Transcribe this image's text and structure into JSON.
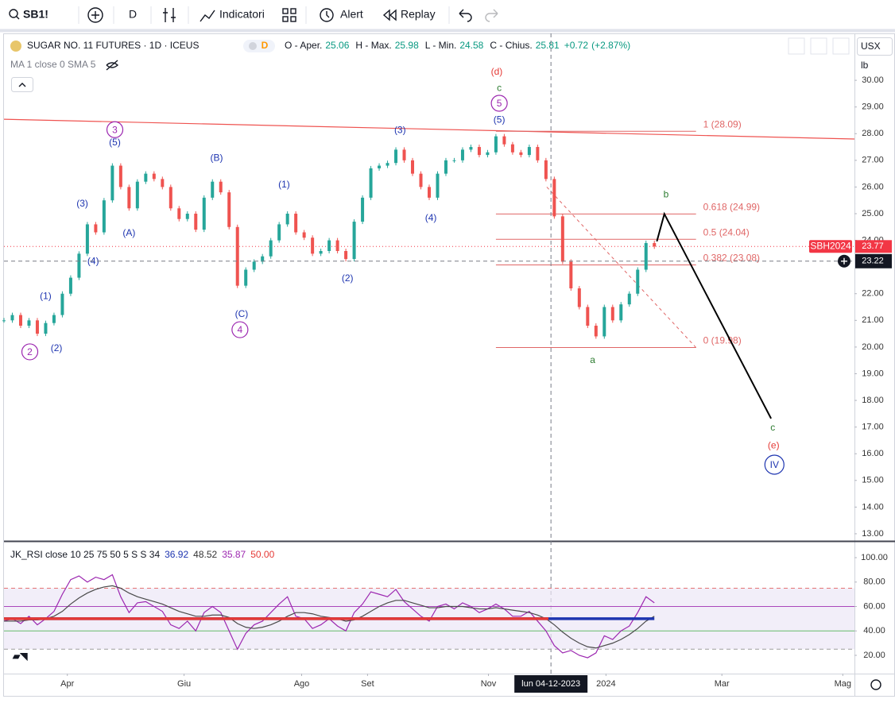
{
  "toolbar": {
    "symbol": "SB1!",
    "interval": "D",
    "indicators": "Indicatori",
    "alert": "Alert",
    "replay": "Replay"
  },
  "chart_data": [
    {
      "type": "candlestick",
      "title": "SUGAR NO. 11 FUTURES · 1D · ICEUS",
      "badge": "D",
      "ohlc": [
        {
          "label": "O - Aper.",
          "value": 25.06
        },
        {
          "label": "H - Max.",
          "value": 25.98
        },
        {
          "label": "L - Min.",
          "value": 24.58
        },
        {
          "label": "C - Chius.",
          "value": 25.81
        }
      ],
      "change": "+0.72",
      "change_pct": "(+2.87%)",
      "indicator_legend": "MA 1 close 0 SMA 5",
      "currency": "USX",
      "unit": "lb",
      "xlim": [
        0,
        102
      ],
      "ylim": [
        12.76,
        31.76
      ],
      "yticks": [
        {
          "value": 13,
          "label": "13.00"
        },
        {
          "value": 14,
          "label": "14.00"
        },
        {
          "value": 15,
          "label": "15.00"
        },
        {
          "value": 16,
          "label": "16.00"
        },
        {
          "value": 17,
          "label": "17.00"
        },
        {
          "value": 18,
          "label": "18.00"
        },
        {
          "value": 19,
          "label": "19.00"
        },
        {
          "value": 20,
          "label": "20.00"
        },
        {
          "value": 21,
          "label": "21.00"
        },
        {
          "value": 22,
          "label": "22.00"
        },
        {
          "value": 24,
          "label": "24.00"
        },
        {
          "value": 25,
          "label": "25.00"
        },
        {
          "value": 26,
          "label": "26.00"
        },
        {
          "value": 27,
          "label": "27.00"
        },
        {
          "value": 28,
          "label": "28.00"
        },
        {
          "value": 29,
          "label": "29.00"
        },
        {
          "value": 30,
          "label": "30.00"
        }
      ],
      "grid": false,
      "series": [
        {
          "name": "SBH2024",
          "color_up": "#26a69a",
          "color_down": "#ef5350",
          "tag_color": "#f23645",
          "values": [
            21.0,
            21.2,
            20.8,
            21.0,
            20.5,
            20.9,
            21.2,
            22.0,
            22.6,
            23.5,
            24.6,
            24.3,
            25.5,
            26.8,
            26.0,
            25.2,
            26.2,
            26.5,
            26.3,
            26.0,
            25.2,
            24.8,
            25.0,
            24.4,
            25.6,
            26.2,
            25.8,
            24.5,
            22.3,
            22.9,
            23.2,
            23.4,
            24.0,
            24.6,
            25.0,
            24.3,
            24.1,
            23.5,
            23.6,
            24.0,
            23.6,
            23.3,
            24.7,
            25.6,
            26.7,
            26.8,
            26.9,
            27.4,
            27.0,
            26.5,
            26.0,
            25.6,
            26.5,
            27.0,
            27.0,
            27.4,
            27.5,
            27.2,
            27.3,
            27.9,
            27.6,
            27.3,
            27.2,
            27.5,
            27.0,
            26.3,
            24.9,
            23.2,
            22.2,
            21.5,
            20.8,
            20.4,
            21.5,
            21.0,
            21.6,
            22.0,
            22.9,
            23.9,
            23.77
          ]
        }
      ],
      "crosshair": {
        "x": 65.6,
        "x_label": "lun 04-12-2023",
        "y": 23.22
      },
      "trendline": {
        "x": [
          0,
          102
        ],
        "y": [
          28.54,
          27.8
        ],
        "color": "#ef5350"
      },
      "fib": {
        "x": [
          59,
          83
        ],
        "color": "#e06666",
        "levels": [
          {
            "label": "1 (28.09)",
            "value": 28.09
          },
          {
            "label": "0.618 (24.99)",
            "value": 24.99
          },
          {
            "label": "0.5 (24.04)",
            "value": 24.04
          },
          {
            "label": "0.382 (23.08)",
            "value": 23.08
          },
          {
            "label": "0 (19.98)",
            "value": 19.98
          }
        ]
      },
      "fib_trend": {
        "x": [
          65.1,
          83
        ],
        "y": [
          26.0,
          19.98
        ]
      },
      "projection": {
        "x": [
          78.3,
          79.2,
          92.0
        ],
        "y": [
          23.96,
          24.99,
          17.32
        ],
        "color": "#000000"
      },
      "annotations": [
        {
          "text": "(d)",
          "x": 59.1,
          "y": 30.33,
          "color": "#e53935"
        },
        {
          "text": "c",
          "x": 59.4,
          "y": 29.73,
          "color": "#2e7d32"
        },
        {
          "text": "5",
          "x": 59.4,
          "y": 29.14,
          "color": "#9c27b0",
          "circle": true
        },
        {
          "text": "(5)",
          "x": 59.4,
          "y": 28.54,
          "color": "#1e35b0"
        },
        {
          "text": "3",
          "x": 13.3,
          "y": 28.15,
          "color": "#9c27b0",
          "circle": true
        },
        {
          "text": "(5)",
          "x": 13.3,
          "y": 27.68,
          "color": "#1e35b0"
        },
        {
          "text": "(3)",
          "x": 47.5,
          "y": 28.15,
          "color": "#1e35b0"
        },
        {
          "text": "(B)",
          "x": 25.5,
          "y": 27.11,
          "color": "#1e35b0"
        },
        {
          "text": "(1)",
          "x": 33.6,
          "y": 26.1,
          "color": "#1e35b0"
        },
        {
          "text": "(3)",
          "x": 9.4,
          "y": 25.39,
          "color": "#1e35b0"
        },
        {
          "text": "(4)",
          "x": 51.2,
          "y": 24.85,
          "color": "#1e35b0"
        },
        {
          "text": "(A)",
          "x": 15.0,
          "y": 24.29,
          "color": "#1e35b0"
        },
        {
          "text": "(4)",
          "x": 10.7,
          "y": 23.24,
          "color": "#1e35b0"
        },
        {
          "text": "(2)",
          "x": 41.2,
          "y": 22.59,
          "color": "#1e35b0"
        },
        {
          "text": "(1)",
          "x": 5.0,
          "y": 21.93,
          "color": "#1e35b0"
        },
        {
          "text": "(C)",
          "x": 28.5,
          "y": 21.25,
          "color": "#1e35b0"
        },
        {
          "text": "4",
          "x": 28.3,
          "y": 20.65,
          "color": "#9c27b0",
          "circle": true
        },
        {
          "text": "2",
          "x": 3.1,
          "y": 19.82,
          "color": "#9c27b0",
          "circle": true
        },
        {
          "text": "(2)",
          "x": 6.3,
          "y": 19.97,
          "color": "#1e35b0"
        },
        {
          "text": "b",
          "x": 79.4,
          "y": 25.74,
          "color": "#2e7d32"
        },
        {
          "text": "a",
          "x": 70.6,
          "y": 19.52,
          "color": "#2e7d32"
        },
        {
          "text": "c",
          "x": 92.2,
          "y": 16.99,
          "color": "#2e7d32"
        },
        {
          "text": "(e)",
          "x": 92.3,
          "y": 16.33,
          "color": "#e53935"
        },
        {
          "text": "IV",
          "x": 92.4,
          "y": 15.59,
          "color": "#1e35b0",
          "circle": true
        }
      ]
    },
    {
      "type": "line",
      "title": "JK_RSI close 10 25 75 50 5 S S 34",
      "legend_values": [
        {
          "value": 36.92,
          "color": "#1e35b0"
        },
        {
          "value": 48.52,
          "color": "#333333"
        },
        {
          "value": 35.87,
          "color": "#9c27b0"
        },
        {
          "value": {
            "value": 50,
            "label": "50.00"
          },
          "color": "#e53935"
        }
      ],
      "xlim": [
        0,
        102
      ],
      "ylim": [
        5.04,
        112.36
      ],
      "yticks": [
        {
          "value": 20,
          "label": "20.00"
        },
        {
          "value": 40,
          "label": "40.00"
        },
        {
          "value": 60,
          "label": "60.00"
        },
        {
          "value": 80,
          "label": "80.00"
        },
        {
          "value": 100,
          "label": "100.00"
        }
      ],
      "xticks": [
        {
          "value": 7.6,
          "label": "Apr"
        },
        {
          "value": 21.6,
          "label": "Giu"
        },
        {
          "value": 35.7,
          "label": "Ago"
        },
        {
          "value": 43.6,
          "label": "Set"
        },
        {
          "value": 58.1,
          "label": "Nov"
        },
        {
          "value": 72.2,
          "label": "2024"
        },
        {
          "value": 86.1,
          "label": "Mar"
        },
        {
          "value": 100.6,
          "label": "Mag"
        }
      ],
      "band": {
        "from": 25,
        "to": 75,
        "color": "#ede7f6"
      },
      "levels": [
        {
          "value": 75,
          "color": "#e57373",
          "dashed": true
        },
        {
          "value": 60,
          "color": "#ab47bc",
          "dashed": false
        },
        {
          "value": 40,
          "color": "#66bb6a",
          "dashed": false
        },
        {
          "value": 25,
          "color": "#9e9e9e",
          "dashed": true
        }
      ],
      "baselines": [
        {
          "value": 50,
          "x": [
            0,
            78
          ],
          "color": "#1e35b0"
        },
        {
          "value": 50,
          "x": [
            0,
            65.3
          ],
          "color": "#e53935"
        }
      ],
      "series": [
        {
          "color": "#9c27b0",
          "values": [
            48,
            50,
            46,
            52,
            45,
            50,
            56,
            70,
            82,
            85,
            80,
            84,
            82,
            86,
            68,
            55,
            63,
            64,
            60,
            56,
            45,
            42,
            48,
            40,
            55,
            60,
            55,
            40,
            25,
            38,
            45,
            48,
            55,
            62,
            68,
            52,
            50,
            42,
            45,
            50,
            44,
            40,
            55,
            62,
            72,
            70,
            68,
            74,
            64,
            58,
            52,
            48,
            60,
            62,
            58,
            63,
            60,
            55,
            58,
            62,
            58,
            52,
            52,
            56,
            48,
            40,
            28,
            22,
            24,
            20,
            18,
            22,
            36,
            33,
            40,
            44,
            55,
            68,
            63
          ]
        },
        {
          "color": "#4a4a4a",
          "values": [
            48,
            48,
            48,
            49,
            49,
            50,
            52,
            56,
            62,
            67,
            71,
            74,
            76,
            77,
            75,
            71,
            68,
            66,
            64,
            62,
            59,
            56,
            54,
            52,
            52,
            53,
            53,
            51,
            46,
            43,
            42,
            43,
            45,
            48,
            52,
            55,
            55,
            54,
            52,
            51,
            50,
            48,
            49,
            52,
            56,
            60,
            63,
            65,
            65,
            63,
            61,
            59,
            59,
            60,
            60,
            60,
            59,
            58,
            58,
            59,
            58,
            57,
            56,
            55,
            53,
            50,
            45,
            39,
            34,
            30,
            27,
            26,
            28,
            30,
            33,
            37,
            42,
            48,
            52
          ]
        }
      ]
    }
  ]
}
